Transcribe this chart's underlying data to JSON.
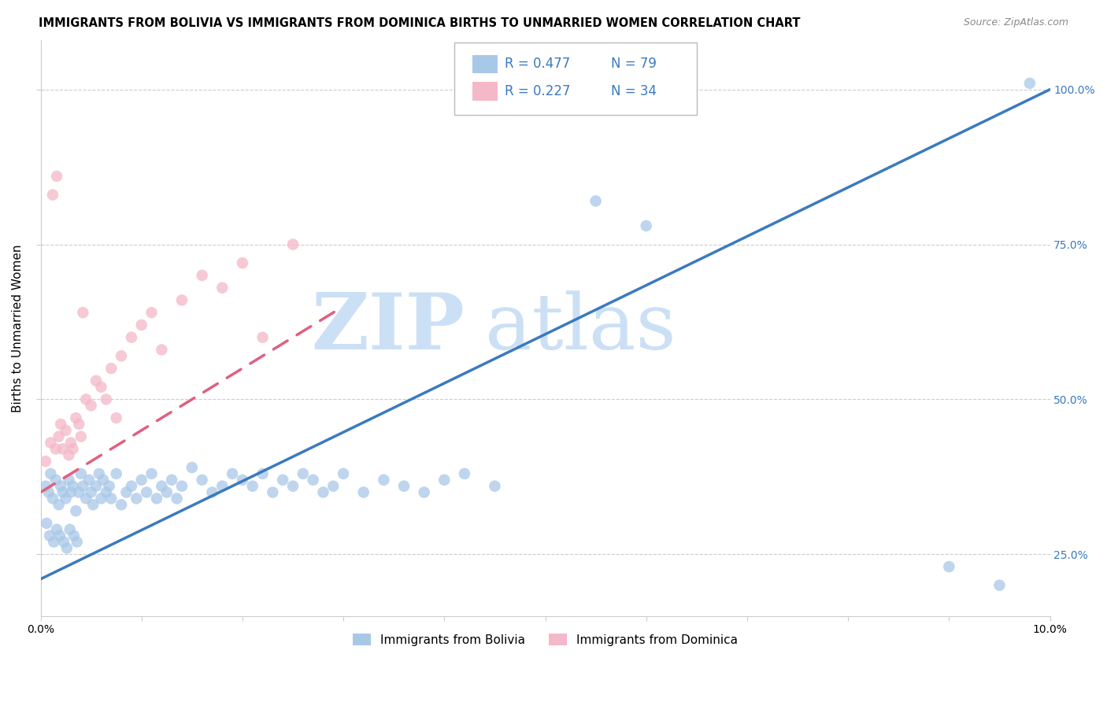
{
  "title": "IMMIGRANTS FROM BOLIVIA VS IMMIGRANTS FROM DOMINICA BIRTHS TO UNMARRIED WOMEN CORRELATION CHART",
  "source": "Source: ZipAtlas.com",
  "ylabel": "Births to Unmarried Women",
  "legend_label1": "Immigrants from Bolivia",
  "legend_label2": "Immigrants from Dominica",
  "R1": 0.477,
  "N1": 79,
  "R2": 0.227,
  "N2": 34,
  "color1": "#a8c8e8",
  "color2": "#f4b8c8",
  "line_color1": "#3a7abf",
  "line_color2": "#e06080",
  "right_axis_color": "#3a7abf",
  "xmin": 0.0,
  "xmax": 10.0,
  "ymin": 15.0,
  "ymax": 108.0,
  "ytick_vals": [
    25.0,
    50.0,
    75.0,
    100.0
  ],
  "xtick_vals": [
    0.0,
    1.0,
    2.0,
    3.0,
    4.0,
    5.0,
    6.0,
    7.0,
    8.0,
    9.0,
    10.0
  ],
  "watermark_zip": "ZIP",
  "watermark_atlas": "atlas",
  "background": "#ffffff",
  "blue_line_x0": 0.0,
  "blue_line_y0": 21.0,
  "blue_line_x1": 10.0,
  "blue_line_y1": 100.0,
  "pink_line_x0": 0.0,
  "pink_line_y0": 35.0,
  "pink_line_x1": 3.0,
  "pink_line_y1": 65.0,
  "bolivia_x": [
    0.05,
    0.08,
    0.1,
    0.12,
    0.15,
    0.18,
    0.2,
    0.22,
    0.25,
    0.28,
    0.3,
    0.32,
    0.35,
    0.38,
    0.4,
    0.42,
    0.45,
    0.48,
    0.5,
    0.52,
    0.55,
    0.58,
    0.6,
    0.62,
    0.65,
    0.68,
    0.7,
    0.75,
    0.8,
    0.85,
    0.9,
    0.95,
    1.0,
    1.05,
    1.1,
    1.15,
    1.2,
    1.25,
    1.3,
    1.35,
    1.4,
    1.5,
    1.6,
    1.7,
    1.8,
    1.9,
    2.0,
    2.1,
    2.2,
    2.3,
    2.4,
    2.5,
    2.6,
    2.7,
    2.8,
    2.9,
    3.0,
    3.2,
    3.4,
    3.6,
    3.8,
    4.0,
    4.2,
    4.5,
    5.5,
    6.0,
    9.0,
    9.5,
    9.8,
    0.06,
    0.09,
    0.13,
    0.16,
    0.19,
    0.23,
    0.26,
    0.29,
    0.33,
    0.36
  ],
  "bolivia_y": [
    36,
    35,
    38,
    34,
    37,
    33,
    36,
    35,
    34,
    37,
    35,
    36,
    32,
    35,
    38,
    36,
    34,
    37,
    35,
    33,
    36,
    38,
    34,
    37,
    35,
    36,
    34,
    38,
    33,
    35,
    36,
    34,
    37,
    35,
    38,
    34,
    36,
    35,
    37,
    34,
    36,
    39,
    37,
    35,
    36,
    38,
    37,
    36,
    38,
    35,
    37,
    36,
    38,
    37,
    35,
    36,
    38,
    35,
    37,
    36,
    35,
    37,
    38,
    36,
    82,
    78,
    23,
    20,
    101,
    30,
    28,
    27,
    29,
    28,
    27,
    26,
    29,
    28,
    27
  ],
  "dominica_x": [
    0.05,
    0.1,
    0.15,
    0.18,
    0.2,
    0.22,
    0.25,
    0.28,
    0.3,
    0.32,
    0.35,
    0.38,
    0.4,
    0.45,
    0.5,
    0.55,
    0.6,
    0.65,
    0.7,
    0.8,
    0.9,
    1.0,
    1.1,
    1.2,
    1.4,
    1.6,
    1.8,
    2.0,
    2.2,
    2.5,
    0.12,
    0.16,
    0.42,
    0.75
  ],
  "dominica_y": [
    40,
    43,
    42,
    44,
    46,
    42,
    45,
    41,
    43,
    42,
    47,
    46,
    44,
    50,
    49,
    53,
    52,
    50,
    55,
    57,
    60,
    62,
    64,
    58,
    66,
    70,
    68,
    72,
    60,
    75,
    83,
    86,
    64,
    47
  ]
}
